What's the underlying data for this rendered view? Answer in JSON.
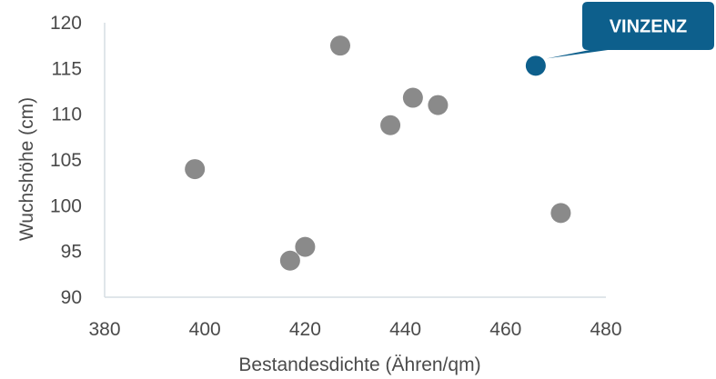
{
  "chart_data": {
    "type": "scatter",
    "xlabel": "Bestandesdichte (Ähren/qm)",
    "ylabel": "Wuchshöhe (cm)",
    "xlim": [
      380,
      480
    ],
    "ylim": [
      90,
      120
    ],
    "xticks": [
      "380",
      "400",
      "420",
      "440",
      "460",
      "480"
    ],
    "yticks": [
      "90",
      "95",
      "100",
      "105",
      "110",
      "115",
      "120"
    ],
    "grid": false,
    "legend": "none",
    "point_color": "#8a8a8a",
    "highlight_color": "#0d5f8c",
    "points": [
      {
        "x": 398,
        "y": 104
      },
      {
        "x": 417,
        "y": 94
      },
      {
        "x": 420,
        "y": 95.5
      },
      {
        "x": 427,
        "y": 117.5
      },
      {
        "x": 437,
        "y": 108.8
      },
      {
        "x": 441.5,
        "y": 111.8
      },
      {
        "x": 446.5,
        "y": 111
      },
      {
        "x": 471,
        "y": 99.2
      }
    ],
    "highlight": {
      "x": 466,
      "y": 115.3,
      "label": "VINZENZ"
    }
  }
}
